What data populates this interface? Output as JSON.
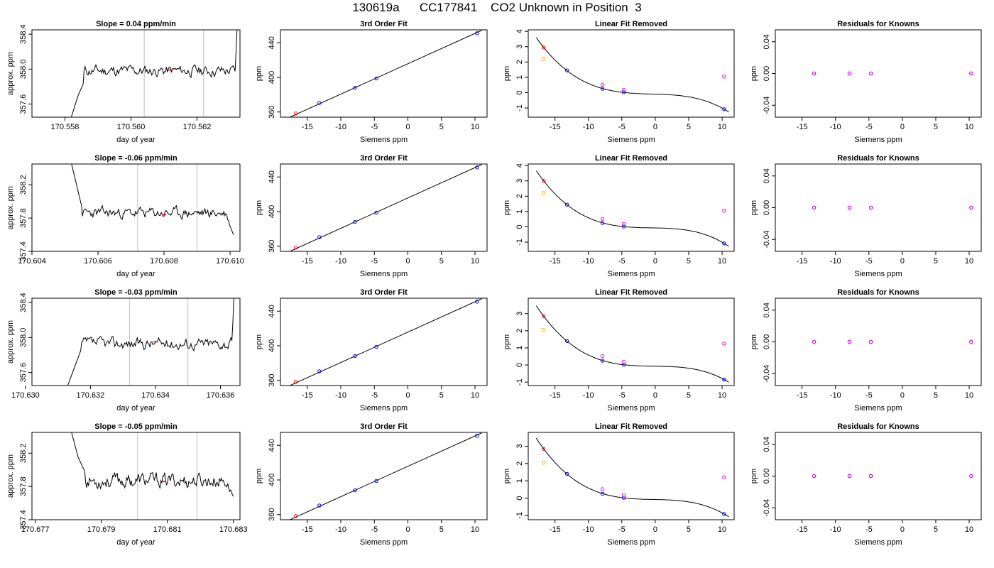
{
  "page_title": "130619a      CC177841    CO2 Unknown in Position  3",
  "colors": {
    "line": "#000000",
    "grid_vline": "#bebebe",
    "known": "#0000ff",
    "unknown_red": "#ff0000",
    "unknown_orange": "#ffa500",
    "unknown_magenta": "#ee00ee"
  },
  "chart_data": [
    {
      "row": 0,
      "type": "line",
      "title": "Slope =  0.04  ppm/min",
      "xlabel": "day of year",
      "ylabel": "approx. ppm",
      "xlim": [
        170.557,
        170.5633
      ],
      "ylim": [
        357.45,
        358.45
      ],
      "xticks": [
        170.558,
        170.56,
        170.562
      ],
      "xtick_labels": [
        "170.558",
        "170.560",
        "170.562"
      ],
      "yticks": [
        357.6,
        358.0,
        358.4
      ],
      "ytick_labels": [
        "357.6",
        "358.0",
        "358.4"
      ],
      "vlines": [
        170.5604,
        170.5622
      ],
      "red_marker": [
        170.5612,
        357.99
      ],
      "seed": 11,
      "trace": {
        "start": 170.55815,
        "end": 170.5633,
        "pre": [
          [
            170.55815,
            357.4
          ],
          [
            170.5584,
            357.7
          ],
          [
            170.55855,
            357.83
          ]
        ],
        "level": 357.98,
        "noise": 0.05,
        "end_rise": true
      }
    },
    {
      "row": 0,
      "type": "scatter",
      "title": "3rd Order Fit",
      "xlabel": "Siemens ppm",
      "ylabel": "ppm",
      "xlim": [
        -19,
        11.8
      ],
      "ylim": [
        354,
        455
      ],
      "xticks": [
        -15,
        -10,
        -5,
        0,
        5,
        10
      ],
      "xtick_labels": [
        "-15",
        "-10",
        "-5",
        "0",
        "5",
        "10"
      ],
      "yticks": [
        360,
        400,
        440
      ],
      "ytick_labels": [
        "360",
        "400",
        "440"
      ],
      "knowns": [
        [
          -13.2,
          370.5
        ],
        [
          -7.9,
          388.0
        ],
        [
          -4.7,
          398.8
        ],
        [
          10.3,
          451.0
        ]
      ],
      "unknown": [
        -16.7,
        358.3
      ]
    },
    {
      "row": 0,
      "type": "scatter",
      "title": "Linear Fit Removed",
      "xlabel": "Siemens ppm",
      "ylabel": "ppm",
      "xlim": [
        -19,
        11.8
      ],
      "ylim": [
        -1.6,
        4.1
      ],
      "xticks": [
        -15,
        -10,
        -5,
        0,
        5,
        10
      ],
      "xtick_labels": [
        "-15",
        "-10",
        "-5",
        "0",
        "5",
        "10"
      ],
      "yticks": [
        -1,
        0,
        1,
        2,
        3,
        4
      ],
      "ytick_labels": [
        "-1",
        "0",
        "1",
        "2",
        "3",
        "4"
      ],
      "knowns": [
        [
          -13.2,
          1.45
        ],
        [
          -7.9,
          0.25
        ],
        [
          -4.7,
          0.02
        ],
        [
          10.3,
          -1.08
        ]
      ],
      "red": [
        -16.7,
        2.95
      ],
      "orange": [
        -16.7,
        2.2
      ],
      "magenta": [
        [
          -7.9,
          0.52
        ],
        [
          -4.7,
          0.18
        ],
        [
          10.3,
          1.05
        ]
      ]
    },
    {
      "row": 0,
      "type": "scatter",
      "title": "Residuals for Knowns",
      "xlabel": "Siemens ppm",
      "ylabel": "ppm",
      "xlim": [
        -19,
        11.8
      ],
      "ylim": [
        -0.055,
        0.055
      ],
      "xticks": [
        -15,
        -10,
        -5,
        0,
        5,
        10
      ],
      "xtick_labels": [
        "-15",
        "-10",
        "-5",
        "0",
        "5",
        "10"
      ],
      "yticks": [
        -0.04,
        0.0,
        0.04
      ],
      "ytick_labels": [
        "-0.04",
        "0.00",
        "0.04"
      ],
      "knowns": [
        [
          -13.2,
          0
        ],
        [
          -7.9,
          0
        ],
        [
          -4.7,
          0
        ],
        [
          10.3,
          0
        ]
      ]
    },
    {
      "row": 1,
      "type": "line",
      "title": "Slope =  -0.06  ppm/min",
      "xlabel": "day of year",
      "ylabel": "approx. ppm",
      "xlim": [
        170.604,
        170.6103
      ],
      "ylim": [
        357.4,
        358.45
      ],
      "xticks": [
        170.604,
        170.606,
        170.608,
        170.61
      ],
      "xtick_labels": [
        "170.604",
        "170.606",
        "170.608",
        "170.610"
      ],
      "yticks": [
        357.4,
        357.8,
        358.2
      ],
      "ytick_labels": [
        "357.4",
        "357.8",
        "358.2"
      ],
      "vlines": [
        170.6072,
        170.609
      ],
      "red_marker": [
        170.608,
        357.84
      ],
      "seed": 23,
      "trace": {
        "start": 170.6052,
        "end": 170.6101,
        "pre": [
          [
            170.6052,
            358.45
          ],
          [
            170.60535,
            358.2
          ],
          [
            170.6055,
            357.95
          ]
        ],
        "level": 357.86,
        "noise": 0.05,
        "end_drop": 357.6
      }
    },
    {
      "row": 1,
      "type": "scatter",
      "title": "3rd Order Fit",
      "xlabel": "Siemens ppm",
      "ylabel": "ppm",
      "xlim": [
        -19,
        11.8
      ],
      "ylim": [
        354,
        455
      ],
      "xticks": [
        -15,
        -10,
        -5,
        0,
        5,
        10
      ],
      "xtick_labels": [
        "-15",
        "-10",
        "-5",
        "0",
        "5",
        "10"
      ],
      "yticks": [
        360,
        400,
        440
      ],
      "ytick_labels": [
        "360",
        "400",
        "440"
      ],
      "knowns": [
        [
          -13.2,
          370.5
        ],
        [
          -7.9,
          388.0
        ],
        [
          -4.7,
          398.8
        ],
        [
          10.3,
          451.0
        ]
      ],
      "unknown": [
        -16.7,
        358.3
      ]
    },
    {
      "row": 1,
      "type": "scatter",
      "title": "Linear Fit Removed",
      "xlabel": "Siemens ppm",
      "ylabel": "ppm",
      "xlim": [
        -19,
        11.8
      ],
      "ylim": [
        -1.6,
        4.1
      ],
      "xticks": [
        -15,
        -10,
        -5,
        0,
        5,
        10
      ],
      "xtick_labels": [
        "-15",
        "-10",
        "-5",
        "0",
        "5",
        "10"
      ],
      "yticks": [
        -1,
        0,
        1,
        2,
        3,
        4
      ],
      "ytick_labels": [
        "-1",
        "0",
        "1",
        "2",
        "3",
        "4"
      ],
      "knowns": [
        [
          -13.2,
          1.45
        ],
        [
          -7.9,
          0.25
        ],
        [
          -4.7,
          0.02
        ],
        [
          10.3,
          -1.08
        ]
      ],
      "red": [
        -16.7,
        3.0
      ],
      "orange": [
        -16.7,
        2.2
      ],
      "magenta": [
        [
          -7.9,
          0.52
        ],
        [
          -4.7,
          0.18
        ],
        [
          10.3,
          1.05
        ]
      ]
    },
    {
      "row": 1,
      "type": "scatter",
      "title": "Residuals for Knowns",
      "xlabel": "Siemens ppm",
      "ylabel": "ppm",
      "xlim": [
        -19,
        11.8
      ],
      "ylim": [
        -0.055,
        0.055
      ],
      "xticks": [
        -15,
        -10,
        -5,
        0,
        5,
        10
      ],
      "xtick_labels": [
        "-15",
        "-10",
        "-5",
        "0",
        "5",
        "10"
      ],
      "yticks": [
        -0.04,
        0.0,
        0.04
      ],
      "ytick_labels": [
        "-0.04",
        "0.00",
        "0.04"
      ],
      "knowns": [
        [
          -13.2,
          0
        ],
        [
          -7.9,
          0
        ],
        [
          -4.7,
          0
        ],
        [
          10.3,
          0
        ]
      ]
    },
    {
      "row": 2,
      "type": "line",
      "title": "Slope =  -0.03  ppm/min",
      "xlabel": "day of year",
      "ylabel": "approx. ppm",
      "xlim": [
        170.6302,
        170.6366
      ],
      "ylim": [
        357.45,
        358.45
      ],
      "xticks": [
        170.63,
        170.632,
        170.634,
        170.636
      ],
      "xtick_labels": [
        "170.630",
        "170.632",
        "170.634",
        "170.636"
      ],
      "yticks": [
        357.6,
        358.0,
        358.4
      ],
      "ytick_labels": [
        "357.6",
        "358.0",
        "358.4"
      ],
      "vlines": [
        170.6332,
        170.635
      ],
      "red_marker": [
        170.634,
        357.95
      ],
      "seed": 37,
      "trace": {
        "start": 170.6313,
        "end": 170.6365,
        "pre": [
          [
            170.6313,
            357.45
          ],
          [
            170.63155,
            357.7
          ],
          [
            170.6317,
            357.85
          ]
        ],
        "level": 357.93,
        "noise": 0.05,
        "end_rise": true
      }
    },
    {
      "row": 2,
      "type": "scatter",
      "title": "3rd Order Fit",
      "xlabel": "Siemens ppm",
      "ylabel": "ppm",
      "xlim": [
        -19,
        11.8
      ],
      "ylim": [
        354,
        455
      ],
      "xticks": [
        -15,
        -10,
        -5,
        0,
        5,
        10
      ],
      "xtick_labels": [
        "-15",
        "-10",
        "-5",
        "0",
        "5",
        "10"
      ],
      "yticks": [
        360,
        400,
        440
      ],
      "ytick_labels": [
        "360",
        "400",
        "440"
      ],
      "knowns": [
        [
          -13.2,
          370.5
        ],
        [
          -7.9,
          388.0
        ],
        [
          -4.7,
          398.8
        ],
        [
          10.3,
          451.0
        ]
      ],
      "unknown": [
        -16.7,
        358.3
      ]
    },
    {
      "row": 2,
      "type": "scatter",
      "title": "Linear Fit Removed",
      "xlabel": "Siemens ppm",
      "ylabel": "ppm",
      "xlim": [
        -19,
        11.8
      ],
      "ylim": [
        -1.2,
        3.9
      ],
      "xticks": [
        -15,
        -10,
        -5,
        0,
        5,
        10
      ],
      "xtick_labels": [
        "-15",
        "-10",
        "-5",
        "0",
        "5",
        "10"
      ],
      "yticks": [
        -1,
        0,
        1,
        2,
        3
      ],
      "ytick_labels": [
        "-1",
        "0",
        "1",
        "2",
        "3"
      ],
      "knowns": [
        [
          -13.2,
          1.4
        ],
        [
          -7.9,
          0.25
        ],
        [
          -4.7,
          0.02
        ],
        [
          10.3,
          -0.85
        ]
      ],
      "red": [
        -16.7,
        2.85
      ],
      "orange": [
        -16.7,
        2.05
      ],
      "magenta": [
        [
          -7.9,
          0.52
        ],
        [
          -4.7,
          0.18
        ],
        [
          10.3,
          1.25
        ]
      ]
    },
    {
      "row": 2,
      "type": "scatter",
      "title": "Residuals for Knowns",
      "xlabel": "Siemens ppm",
      "ylabel": "ppm",
      "xlim": [
        -19,
        11.8
      ],
      "ylim": [
        -0.055,
        0.055
      ],
      "xticks": [
        -15,
        -10,
        -5,
        0,
        5,
        10
      ],
      "xtick_labels": [
        "-15",
        "-10",
        "-5",
        "0",
        "5",
        "10"
      ],
      "yticks": [
        -0.04,
        0.0,
        0.04
      ],
      "ytick_labels": [
        "-0.04",
        "0.00",
        "0.04"
      ],
      "knowns": [
        [
          -13.2,
          0
        ],
        [
          -7.9,
          0
        ],
        [
          -4.7,
          0
        ],
        [
          10.3,
          0
        ]
      ]
    },
    {
      "row": 3,
      "type": "line",
      "title": "Slope =  -0.05  ppm/min",
      "xlabel": "day of year",
      "ylabel": "approx. ppm",
      "xlim": [
        170.6769,
        170.6832
      ],
      "ylim": [
        357.4,
        358.45
      ],
      "xticks": [
        170.677,
        170.679,
        170.681,
        170.683
      ],
      "xtick_labels": [
        "170.677",
        "170.679",
        "170.681",
        "170.683"
      ],
      "yticks": [
        357.4,
        357.8,
        358.2
      ],
      "ytick_labels": [
        "357.4",
        "357.8",
        "358.2"
      ],
      "vlines": [
        170.6801,
        170.6819
      ],
      "red_marker": [
        170.6809,
        357.86
      ],
      "seed": 53,
      "trace": {
        "start": 170.6781,
        "end": 170.683,
        "pre": [
          [
            170.6781,
            358.45
          ],
          [
            170.6783,
            358.15
          ],
          [
            170.6785,
            357.98
          ]
        ],
        "level": 357.87,
        "noise": 0.07,
        "end_drop": 357.68
      }
    },
    {
      "row": 3,
      "type": "scatter",
      "title": "3rd Order Fit",
      "xlabel": "Siemens ppm",
      "ylabel": "ppm",
      "xlim": [
        -19,
        11.8
      ],
      "ylim": [
        354,
        455
      ],
      "xticks": [
        -15,
        -10,
        -5,
        0,
        5,
        10
      ],
      "xtick_labels": [
        "-15",
        "-10",
        "-5",
        "0",
        "5",
        "10"
      ],
      "yticks": [
        360,
        400,
        440
      ],
      "ytick_labels": [
        "360",
        "400",
        "440"
      ],
      "knowns": [
        [
          -13.2,
          370.5
        ],
        [
          -7.9,
          388.0
        ],
        [
          -4.7,
          398.8
        ],
        [
          10.3,
          451.0
        ]
      ],
      "unknown": [
        -16.7,
        358.3
      ]
    },
    {
      "row": 3,
      "type": "scatter",
      "title": "Linear Fit Removed",
      "xlabel": "Siemens ppm",
      "ylabel": "ppm",
      "xlim": [
        -19,
        11.8
      ],
      "ylim": [
        -1.25,
        3.8
      ],
      "xticks": [
        -15,
        -10,
        -5,
        0,
        5,
        10
      ],
      "xtick_labels": [
        "-15",
        "-10",
        "-5",
        "0",
        "5",
        "10"
      ],
      "yticks": [
        -1,
        0,
        1,
        2,
        3
      ],
      "ytick_labels": [
        "-1",
        "0",
        "1",
        "2",
        "3"
      ],
      "knowns": [
        [
          -13.2,
          1.4
        ],
        [
          -7.9,
          0.25
        ],
        [
          -4.7,
          0.02
        ],
        [
          10.3,
          -0.92
        ]
      ],
      "red": [
        -16.7,
        2.85
      ],
      "orange": [
        -16.7,
        2.05
      ],
      "magenta": [
        [
          -7.9,
          0.52
        ],
        [
          -4.7,
          0.18
        ],
        [
          10.3,
          1.2
        ]
      ]
    },
    {
      "row": 3,
      "type": "scatter",
      "title": "Residuals for Knowns",
      "xlabel": "Siemens ppm",
      "ylabel": "ppm",
      "xlim": [
        -19,
        11.8
      ],
      "ylim": [
        -0.055,
        0.055
      ],
      "xticks": [
        -15,
        -10,
        -5,
        0,
        5,
        10
      ],
      "xtick_labels": [
        "-15",
        "-10",
        "-5",
        "0",
        "5",
        "10"
      ],
      "yticks": [
        -0.04,
        0.0,
        0.04
      ],
      "ytick_labels": [
        "-0.04",
        "0.00",
        "0.04"
      ],
      "knowns": [
        [
          -13.2,
          0
        ],
        [
          -7.9,
          0
        ],
        [
          -4.7,
          0
        ],
        [
          10.3,
          0
        ]
      ]
    }
  ]
}
